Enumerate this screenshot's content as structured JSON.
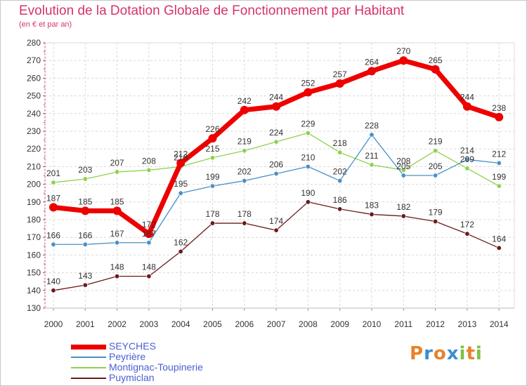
{
  "title": "Evolution de la Dotation Globale de Fonctionnement par Habitant",
  "subtitle": "(en € et par an)",
  "chart_data": {
    "type": "line",
    "x": [
      "2000",
      "2001",
      "2002",
      "2003",
      "2004",
      "2005",
      "2006",
      "2007",
      "2008",
      "2009",
      "2010",
      "2011",
      "2012",
      "2013",
      "2014"
    ],
    "ylim": [
      130,
      280
    ],
    "yticks": [
      130,
      140,
      150,
      160,
      170,
      180,
      190,
      200,
      210,
      220,
      230,
      240,
      250,
      260,
      270,
      280
    ],
    "grid": true,
    "legend": "bottom-left",
    "series": [
      {
        "name": "SEYCHES",
        "color": "#ee0000",
        "values": [
          187,
          185,
          185,
          172,
          212,
          226,
          242,
          244,
          252,
          257,
          264,
          270,
          265,
          244,
          238
        ],
        "labels": [
          "187",
          "185",
          "185",
          "172",
          "212",
          "226",
          "242",
          "244",
          "252",
          "257",
          "264",
          "270",
          "265",
          "244",
          "238"
        ]
      },
      {
        "name": "Peyrière",
        "color": "#4a90c8",
        "values": [
          166,
          166,
          167,
          167,
          195,
          199,
          202,
          206,
          210,
          202,
          228,
          205,
          205,
          214,
          212
        ],
        "labels": [
          "166",
          "166",
          "167",
          "167",
          "195",
          "199",
          "202",
          "206",
          "210",
          "202",
          "228",
          "205",
          "205",
          "214",
          "212"
        ]
      },
      {
        "name": "Montignac-Toupinerie",
        "color": "#8fd14f",
        "values": [
          201,
          203,
          207,
          208,
          210,
          215,
          219,
          224,
          229,
          218,
          211,
          208,
          219,
          209,
          199
        ],
        "labels": [
          "201",
          "203",
          "207",
          "208",
          "210",
          "215",
          "219",
          "224",
          "229",
          "218",
          "211",
          "208",
          "219",
          "209",
          "199"
        ]
      },
      {
        "name": "Puymiclan",
        "color": "#6b1a1a",
        "values": [
          140,
          143,
          148,
          148,
          162,
          178,
          178,
          174,
          190,
          186,
          183,
          182,
          179,
          172,
          164
        ],
        "labels": [
          "140",
          "143",
          "148",
          "148",
          "162",
          "178",
          "178",
          "174",
          "190",
          "186",
          "183",
          "182",
          "179",
          "172",
          "164"
        ]
      }
    ]
  },
  "logo": {
    "text": "Proxiti",
    "letters": [
      "P",
      "r",
      "o",
      "x",
      "i",
      "t",
      "i"
    ],
    "colors": [
      "#e8832a",
      "#3b8ed0",
      "#e8832a",
      "#3b8ed0",
      "#7cc242",
      "#e8832a",
      "#7cc242"
    ]
  }
}
